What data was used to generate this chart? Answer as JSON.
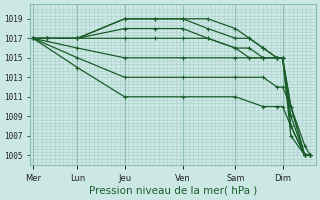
{
  "bg_color": "#cce8e4",
  "grid_color": "#aad0c8",
  "line_color": "#1a5c2a",
  "ylabel_values": [
    1005,
    1007,
    1009,
    1011,
    1013,
    1015,
    1017,
    1019
  ],
  "x_days": [
    "Mer",
    "Lun",
    "Jeu",
    "Ven",
    "Sam",
    "Dim"
  ],
  "x_day_positions": [
    0.0,
    0.16,
    0.33,
    0.54,
    0.73,
    0.9
  ],
  "title": "Pression niveau de la mer( hPa )",
  "ylim": [
    1004.0,
    1020.5
  ],
  "xlim": [
    -0.01,
    1.02
  ],
  "series": [
    {
      "x": [
        0.0,
        0.05,
        0.16,
        0.33,
        0.44,
        0.54,
        0.63,
        0.73,
        0.78,
        0.83,
        0.88,
        0.9,
        0.93,
        0.98,
        1.0
      ],
      "y": [
        1017,
        1017,
        1017,
        1019,
        1019,
        1019,
        1019,
        1018,
        1017,
        1016,
        1015,
        1015,
        1010,
        1005,
        1005
      ]
    },
    {
      "x": [
        0.0,
        0.05,
        0.16,
        0.33,
        0.44,
        0.54,
        0.63,
        0.73,
        0.78,
        0.83,
        0.88,
        0.9,
        0.93,
        0.98,
        1.0
      ],
      "y": [
        1017,
        1017,
        1017,
        1019,
        1019,
        1019,
        1018,
        1017,
        1017,
        1016,
        1015,
        1015,
        1009,
        1005,
        1005
      ]
    },
    {
      "x": [
        0.0,
        0.05,
        0.16,
        0.33,
        0.44,
        0.54,
        0.63,
        0.73,
        0.78,
        0.83,
        0.88,
        0.9,
        0.93,
        0.98,
        1.0
      ],
      "y": [
        1017,
        1017,
        1017,
        1018,
        1018,
        1018,
        1017,
        1016,
        1016,
        1015,
        1015,
        1015,
        1008,
        1005,
        1005
      ]
    },
    {
      "x": [
        0.0,
        0.05,
        0.16,
        0.33,
        0.44,
        0.54,
        0.63,
        0.73,
        0.78,
        0.83,
        0.88,
        0.9,
        0.93,
        0.98,
        1.0
      ],
      "y": [
        1017,
        1017,
        1017,
        1017,
        1017,
        1017,
        1017,
        1016,
        1015,
        1015,
        1015,
        1015,
        1007,
        1005,
        1005
      ]
    },
    {
      "x": [
        0.0,
        0.16,
        0.33,
        0.54,
        0.73,
        0.83,
        0.88,
        0.9,
        0.93,
        0.98,
        1.0
      ],
      "y": [
        1017,
        1016,
        1015,
        1015,
        1015,
        1015,
        1015,
        1015,
        1010,
        1006,
        1005
      ]
    },
    {
      "x": [
        0.0,
        0.16,
        0.33,
        0.54,
        0.73,
        0.83,
        0.88,
        0.9,
        0.93,
        0.98,
        1.0
      ],
      "y": [
        1017,
        1015,
        1013,
        1013,
        1013,
        1013,
        1012,
        1012,
        1010,
        1005,
        1005
      ]
    },
    {
      "x": [
        0.0,
        0.16,
        0.33,
        0.54,
        0.73,
        0.83,
        0.88,
        0.9,
        0.93,
        0.98,
        1.0
      ],
      "y": [
        1017,
        1014,
        1011,
        1011,
        1011,
        1010,
        1010,
        1010,
        1008,
        1005,
        1005
      ]
    }
  ]
}
